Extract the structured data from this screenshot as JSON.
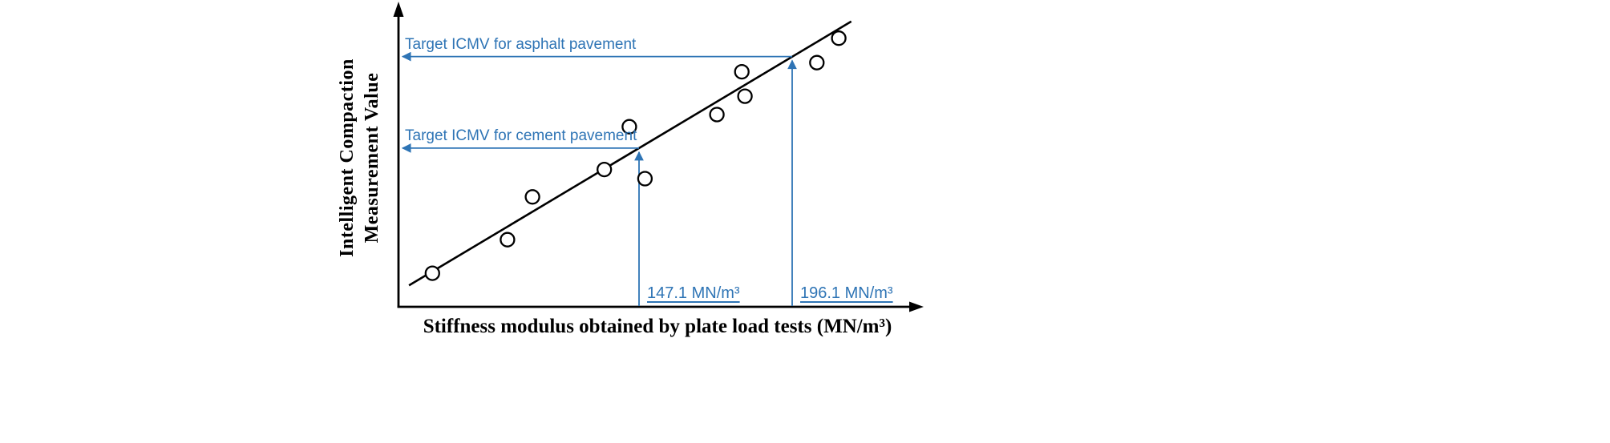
{
  "figure": {
    "background": "#FFFFFF"
  },
  "chart_data": {
    "type": "scatter",
    "title": "",
    "xlabel": "Stiffness modulus obtained by plate load tests (MN/m³)",
    "ylabel": "Intelligent Compaction Measurement Value",
    "ylabel_lines": [
      "Intelligent Compaction",
      "Measurement Value"
    ],
    "x_unit": "MN/m³",
    "xlim": [
      70,
      225
    ],
    "ylim": [
      0,
      100
    ],
    "grid": false,
    "legend": null,
    "axis_color": "#000000",
    "annotation_color": "#2E74B5",
    "point_fill": "#FFFFFF",
    "points": [
      {
        "x": 81,
        "y": 11
      },
      {
        "x": 105,
        "y": 22
      },
      {
        "x": 113,
        "y": 36
      },
      {
        "x": 136,
        "y": 45
      },
      {
        "x": 144,
        "y": 59
      },
      {
        "x": 149,
        "y": 42
      },
      {
        "x": 172,
        "y": 63
      },
      {
        "x": 180,
        "y": 77
      },
      {
        "x": 181,
        "y": 69
      },
      {
        "x": 204,
        "y": 80
      },
      {
        "x": 211,
        "y": 88
      }
    ],
    "trendline": {
      "type": "linear",
      "x1": 73.5,
      "y1": 7,
      "x2": 215,
      "y2": 93.5
    },
    "targets": [
      {
        "name": "asphalt",
        "label": "Target ICMV for asphalt pavement",
        "x": 196.1,
        "x_label": "196.1 MN/m³",
        "icmv": 82
      },
      {
        "name": "cement",
        "label": "Target ICMV for cement pavement",
        "x": 147.1,
        "x_label": "147.1 MN/m³",
        "icmv": 52
      }
    ]
  }
}
